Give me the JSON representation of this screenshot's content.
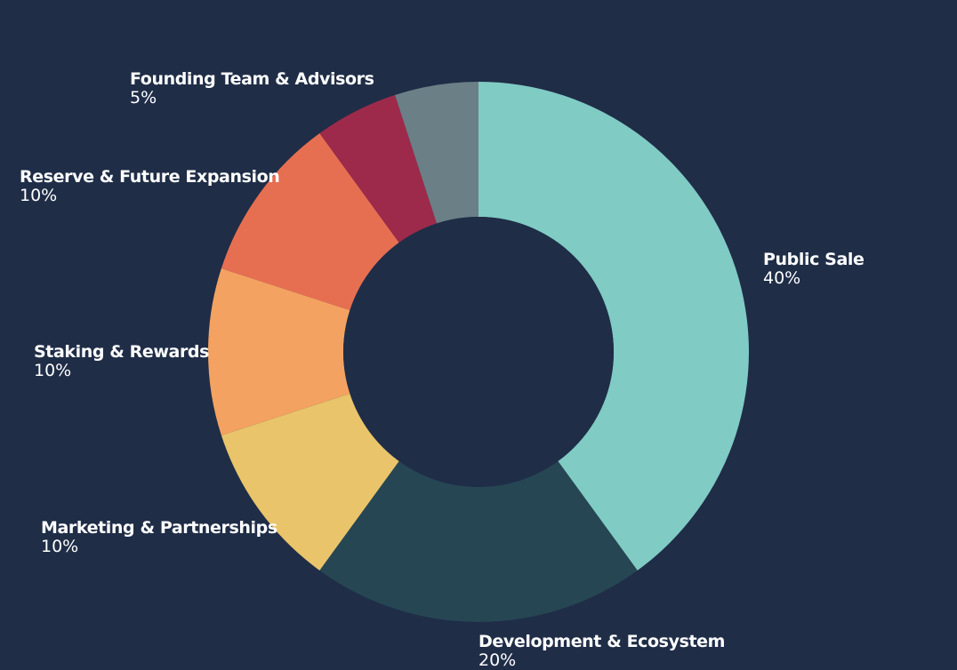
{
  "colors": {
    "background": "#1f2d47"
  },
  "chart_data": {
    "type": "pie",
    "variant": "donut",
    "title": "",
    "unit": "%",
    "legend": "none",
    "slices": [
      {
        "label": "Public Sale",
        "value": 40,
        "value_label": "40%",
        "color": "#80cbc4"
      },
      {
        "label": "Development & Ecosystem",
        "value": 20,
        "value_label": "20%",
        "color": "#264653"
      },
      {
        "label": "Marketing & Partnerships",
        "value": 10,
        "value_label": "10%",
        "color": "#e9c46a"
      },
      {
        "label": "Staking & Rewards",
        "value": 10,
        "value_label": "10%",
        "color": "#f4a261"
      },
      {
        "label": "Reserve & Future Expansion",
        "value": 10,
        "value_label": "10%",
        "color": "#e76f51"
      },
      {
        "label": "Founding Team & Advisors",
        "value": 5,
        "value_label": "5%",
        "color": "#9d2a4a"
      },
      {
        "label": "",
        "value": 5,
        "value_label": "",
        "color": "#6b7f86"
      }
    ]
  }
}
